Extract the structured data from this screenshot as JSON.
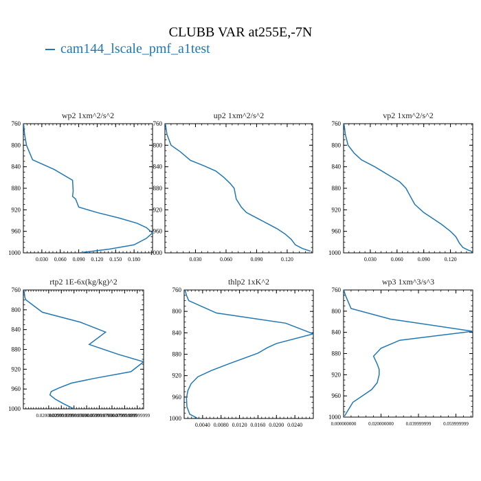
{
  "figure": {
    "title": "CLUBB VAR at255E,-7N",
    "legend": {
      "label": "cam144_lscale_pmf_a1test",
      "color": "#1f77b4"
    }
  },
  "chart_data": [
    {
      "type": "line",
      "title": "wp2  1xm^2/s^2",
      "xlim": [
        0,
        0.21
      ],
      "ylim": [
        760,
        1000
      ],
      "yinverted": true,
      "xticks": [
        0.03,
        0.06,
        0.09,
        0.12,
        0.15,
        0.18
      ],
      "xticklabels": [
        "0.030",
        "0.060",
        "0.090",
        "0.120",
        "0.150",
        "0.180"
      ],
      "yticks": [
        760,
        800,
        840,
        880,
        920,
        960,
        1000
      ],
      "series": [
        {
          "color": "#1f77b4",
          "x": [
            0.0005,
            0.002,
            0.005,
            0.015,
            0.05,
            0.08,
            0.081,
            0.08,
            0.085,
            0.09,
            0.12,
            0.155,
            0.185,
            0.2,
            0.21,
            0.2,
            0.18,
            0.14,
            0.09
          ],
          "y": [
            760,
            780,
            800,
            827,
            845,
            865,
            885,
            895,
            900,
            915,
            925,
            935,
            945,
            953,
            963,
            973,
            985,
            993,
            1000
          ]
        }
      ]
    },
    {
      "type": "line",
      "title": "up2  1xm^2/s^2",
      "xlim": [
        0,
        0.145
      ],
      "ylim": [
        760,
        1000
      ],
      "yinverted": true,
      "xticks": [
        0.03,
        0.06,
        0.09,
        0.12
      ],
      "xticklabels": [
        "0.030",
        "0.060",
        "0.090",
        "0.120"
      ],
      "yticks": [
        760,
        800,
        840,
        880,
        920,
        960,
        1000
      ],
      "series": [
        {
          "color": "#1f77b4",
          "x": [
            0.0005,
            0.002,
            0.006,
            0.015,
            0.025,
            0.038,
            0.05,
            0.058,
            0.064,
            0.068,
            0.07,
            0.075,
            0.08,
            0.09,
            0.1,
            0.11,
            0.118,
            0.124,
            0.128,
            0.135,
            0.143
          ],
          "y": [
            760,
            780,
            800,
            812,
            828,
            838,
            848,
            860,
            871,
            880,
            900,
            915,
            925,
            935,
            945,
            955,
            965,
            975,
            985,
            992,
            997
          ]
        }
      ]
    },
    {
      "type": "line",
      "title": "vp2  1xm^2/s^2",
      "xlim": [
        0,
        0.145
      ],
      "ylim": [
        760,
        1000
      ],
      "yinverted": true,
      "xticks": [
        0.03,
        0.06,
        0.09,
        0.12
      ],
      "xticklabels": [
        "0.030",
        "0.060",
        "0.090",
        "0.120"
      ],
      "yticks": [
        760,
        800,
        840,
        880,
        920,
        960,
        1000
      ],
      "series": [
        {
          "color": "#1f77b4",
          "x": [
            0.0005,
            0.002,
            0.005,
            0.012,
            0.02,
            0.035,
            0.05,
            0.063,
            0.07,
            0.075,
            0.08,
            0.09,
            0.1,
            0.11,
            0.12,
            0.126,
            0.13,
            0.134,
            0.14,
            0.145
          ],
          "y": [
            760,
            780,
            800,
            815,
            827,
            840,
            855,
            868,
            880,
            895,
            910,
            925,
            936,
            947,
            960,
            970,
            982,
            990,
            995,
            998
          ]
        }
      ]
    },
    {
      "type": "line",
      "title": "rtp2  1E-6x(kg/kg)^2",
      "xlim": [
        0,
        0.095
      ],
      "ylim": [
        760,
        1000
      ],
      "yinverted": true,
      "xticks": [
        0.02,
        0.03,
        0.04,
        0.05,
        0.06,
        0.07,
        0.08,
        0.09
      ],
      "xticklabels": [
        "0.020000000",
        "0.029999999",
        "0.039999999",
        "0.050000000",
        "0.059999999",
        "0.070000000",
        "0.079999999",
        "0.089999999"
      ],
      "yticks": [
        760,
        800,
        840,
        880,
        920,
        960,
        1000
      ],
      "series": [
        {
          "color": "#1f77b4",
          "x": [
            0.0005,
            0.0012,
            0.002,
            0.015,
            0.045,
            0.065,
            0.052,
            0.075,
            0.095,
            0.085,
            0.057,
            0.038,
            0.028,
            0.022,
            0.021,
            0.025,
            0.032,
            0.04
          ],
          "y": [
            760,
            775,
            780,
            805,
            825,
            845,
            870,
            890,
            905,
            925,
            938,
            948,
            958,
            965,
            972,
            980,
            990,
            1000
          ]
        }
      ]
    },
    {
      "type": "line",
      "title": "thlp2  1xK^2",
      "xlim": [
        0,
        0.028
      ],
      "ylim": [
        760,
        1000
      ],
      "yinverted": true,
      "xticks": [
        0.004,
        0.008,
        0.012,
        0.016,
        0.02,
        0.024
      ],
      "xticklabels": [
        "0.0040",
        "0.0080",
        "0.0120",
        "0.0160",
        "0.0200",
        "0.0240"
      ],
      "yticks": [
        760,
        800,
        840,
        880,
        920,
        960,
        1000
      ],
      "series": [
        {
          "color": "#1f77b4",
          "x": [
            0.0002,
            0.0005,
            0.001,
            0.007,
            0.022,
            0.028,
            0.02,
            0.018,
            0.016,
            0.01,
            0.006,
            0.003,
            0.0015,
            0.0008,
            0.0005,
            0.0006,
            0.0012,
            0.003
          ],
          "y": [
            760,
            770,
            780,
            803,
            822,
            842,
            860,
            868,
            878,
            897,
            910,
            922,
            935,
            948,
            962,
            978,
            992,
            1000
          ]
        }
      ]
    },
    {
      "type": "line",
      "title": "wp3  1xm^3/s^3",
      "xlim": [
        0,
        0.069
      ],
      "ylim": [
        760,
        1000
      ],
      "yinverted": true,
      "xticks": [
        0,
        0.02,
        0.04,
        0.06
      ],
      "xticklabels": [
        "0.000000000",
        "0.020000000",
        "0.039999999",
        "0.059999999"
      ],
      "yticks": [
        760,
        800,
        840,
        880,
        920,
        960,
        1000
      ],
      "series": [
        {
          "color": "#1f77b4",
          "x": [
            0.0001,
            0.001,
            0.004,
            0.025,
            0.069,
            0.03,
            0.02,
            0.016,
            0.018,
            0.019,
            0.019,
            0.018,
            0.015,
            0.01,
            0.005,
            0.0005
          ],
          "y": [
            760,
            770,
            795,
            815,
            838,
            855,
            870,
            885,
            900,
            910,
            920,
            935,
            948,
            960,
            972,
            998
          ]
        }
      ]
    }
  ]
}
